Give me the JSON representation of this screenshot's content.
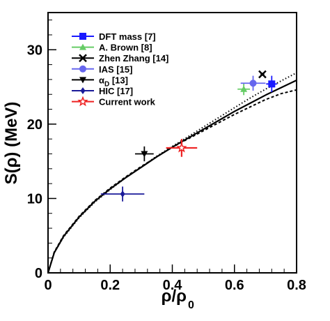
{
  "chart_data": {
    "type": "scatter",
    "xlabel": "ρ/ρ",
    "xlabel_sub": "0",
    "ylabel": "S(ρ) (MeV)",
    "xlim": [
      0,
      0.8
    ],
    "ylim": [
      0,
      35
    ],
    "x_ticks": [
      "0",
      "0.2",
      "0.4",
      "0.6",
      "0.8"
    ],
    "x_tick_values": [
      0,
      0.2,
      0.4,
      0.6,
      0.8
    ],
    "y_ticks": [
      "0",
      "10",
      "20",
      "30"
    ],
    "y_tick_values": [
      0,
      10,
      20,
      30
    ],
    "grid": false,
    "legend_position": "top-left",
    "series": [
      {
        "name": "DFT mass [7]",
        "marker": "square",
        "color": "#1a1aff",
        "points": [
          {
            "x": 0.72,
            "y": 25.4,
            "xerr": 0.018,
            "yerr": 1.1
          }
        ]
      },
      {
        "name": "A. Brown [8]",
        "marker": "triangle-up",
        "color": "#66cc66",
        "points": [
          {
            "x": 0.63,
            "y": 24.7,
            "xerr": 0.02,
            "yerr": 0.8
          }
        ]
      },
      {
        "name": "Zhen Zhang [14]",
        "marker": "x",
        "color": "#000000",
        "points": [
          {
            "x": 0.69,
            "y": 26.7,
            "xerr": 0.006,
            "yerr": 0.2
          }
        ]
      },
      {
        "name": "IAS [15]",
        "marker": "circle",
        "color": "#6666ee",
        "points": [
          {
            "x": 0.66,
            "y": 25.5,
            "xerr": 0.04,
            "yerr": 1.0
          }
        ]
      },
      {
        "name": "α",
        "name_sub": "D",
        "name_suffix": " [13]",
        "marker": "triangle-down",
        "color": "#000000",
        "points": [
          {
            "x": 0.31,
            "y": 16.0,
            "xerr": 0.03,
            "yerr": 1.0
          }
        ]
      },
      {
        "name": "HIC [17]",
        "marker": "diamond",
        "color": "#1a1a99",
        "points": [
          {
            "x": 0.24,
            "y": 10.6,
            "xerr": 0.07,
            "yerr": 1.0
          }
        ]
      },
      {
        "name": "Current work",
        "marker": "star-open",
        "color": "#ee2222",
        "points": [
          {
            "x": 0.43,
            "y": 16.8,
            "xerr": 0.05,
            "yerr": 1.2
          }
        ]
      }
    ],
    "curves": [
      {
        "style": "solid",
        "points": [
          [
            0,
            0
          ],
          [
            0.02,
            2.7
          ],
          [
            0.05,
            4.9
          ],
          [
            0.1,
            7.5
          ],
          [
            0.15,
            9.6
          ],
          [
            0.2,
            11.3
          ],
          [
            0.25,
            12.8
          ],
          [
            0.3,
            14.2
          ],
          [
            0.35,
            15.6
          ],
          [
            0.4,
            16.9
          ],
          [
            0.45,
            18.1
          ],
          [
            0.5,
            19.3
          ],
          [
            0.55,
            20.5
          ],
          [
            0.6,
            21.7
          ],
          [
            0.65,
            22.8
          ],
          [
            0.7,
            23.9
          ],
          [
            0.75,
            24.9
          ],
          [
            0.8,
            25.9
          ]
        ]
      },
      {
        "style": "dotted",
        "points": [
          [
            0,
            0
          ],
          [
            0.02,
            2.7
          ],
          [
            0.05,
            4.8
          ],
          [
            0.1,
            7.4
          ],
          [
            0.15,
            9.5
          ],
          [
            0.2,
            11.2
          ],
          [
            0.25,
            12.8
          ],
          [
            0.3,
            14.2
          ],
          [
            0.35,
            15.7
          ],
          [
            0.4,
            17.0
          ],
          [
            0.45,
            18.3
          ],
          [
            0.5,
            19.6
          ],
          [
            0.55,
            20.9
          ],
          [
            0.6,
            22.2
          ],
          [
            0.65,
            23.5
          ],
          [
            0.7,
            24.7
          ],
          [
            0.75,
            25.8
          ],
          [
            0.8,
            26.9
          ]
        ]
      },
      {
        "style": "dashed",
        "points": [
          [
            0,
            0
          ],
          [
            0.02,
            2.8
          ],
          [
            0.05,
            5.0
          ],
          [
            0.1,
            7.6
          ],
          [
            0.15,
            9.7
          ],
          [
            0.2,
            11.4
          ],
          [
            0.25,
            12.9
          ],
          [
            0.3,
            14.3
          ],
          [
            0.35,
            15.6
          ],
          [
            0.4,
            16.9
          ],
          [
            0.45,
            18.0
          ],
          [
            0.5,
            19.1
          ],
          [
            0.55,
            20.2
          ],
          [
            0.6,
            21.3
          ],
          [
            0.65,
            22.3
          ],
          [
            0.7,
            23.3
          ],
          [
            0.75,
            24.1
          ],
          [
            0.8,
            24.6
          ]
        ]
      }
    ]
  }
}
